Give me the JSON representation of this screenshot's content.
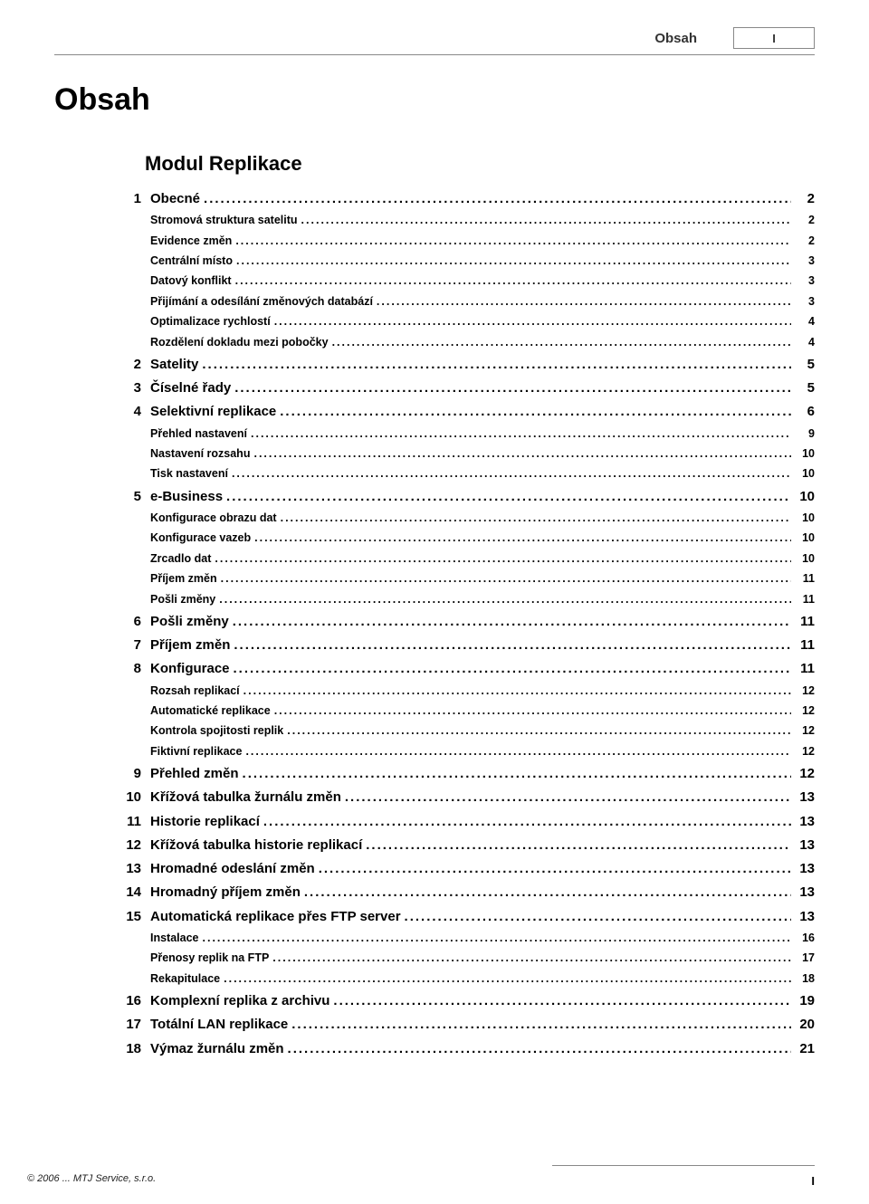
{
  "header": {
    "title": "Obsah",
    "page_number": "I"
  },
  "main_title": "Obsah",
  "chapter_title": "Modul Replikace",
  "toc": [
    {
      "level": 1,
      "num": "1",
      "label": "Obecné",
      "page": "2"
    },
    {
      "level": 2,
      "label": "Stromová struktura satelitu",
      "page": "2"
    },
    {
      "level": 2,
      "label": "Evidence změn",
      "page": "2"
    },
    {
      "level": 2,
      "label": "Centrální místo",
      "page": "3"
    },
    {
      "level": 2,
      "label": "Datový konflikt",
      "page": "3"
    },
    {
      "level": 2,
      "label": "Přijímání a odesílání změnových databází",
      "page": "3"
    },
    {
      "level": 2,
      "label": "Optimalizace rychlostí",
      "page": "4"
    },
    {
      "level": 2,
      "label": "Rozdělení dokladu mezi pobočky",
      "page": "4"
    },
    {
      "level": 1,
      "num": "2",
      "label": "Satelity",
      "page": "5"
    },
    {
      "level": 1,
      "num": "3",
      "label": "Číselné řady",
      "page": "5"
    },
    {
      "level": 1,
      "num": "4",
      "label": "Selektivní replikace",
      "page": "6"
    },
    {
      "level": 2,
      "label": "Přehled nastavení",
      "page": "9"
    },
    {
      "level": 2,
      "label": "Nastavení rozsahu",
      "page": "10"
    },
    {
      "level": 2,
      "label": "Tisk nastavení",
      "page": "10"
    },
    {
      "level": 1,
      "num": "5",
      "label": "e-Business",
      "page": "10"
    },
    {
      "level": 2,
      "label": "Konfigurace obrazu dat",
      "page": "10"
    },
    {
      "level": 2,
      "label": "Konfigurace vazeb",
      "page": "10"
    },
    {
      "level": 2,
      "label": "Zrcadlo dat",
      "page": "10"
    },
    {
      "level": 2,
      "label": "Příjem změn",
      "page": "11"
    },
    {
      "level": 2,
      "label": "Pošli změny",
      "page": "11"
    },
    {
      "level": 1,
      "num": "6",
      "label": "Pošli změny",
      "page": "11"
    },
    {
      "level": 1,
      "num": "7",
      "label": "Příjem změn",
      "page": "11"
    },
    {
      "level": 1,
      "num": "8",
      "label": "Konfigurace",
      "page": "11"
    },
    {
      "level": 2,
      "label": "Rozsah replikací",
      "page": "12"
    },
    {
      "level": 2,
      "label": "Automatické replikace",
      "page": "12"
    },
    {
      "level": 2,
      "label": "Kontrola spojitosti replik",
      "page": "12"
    },
    {
      "level": 2,
      "label": "Fiktivní replikace",
      "page": "12"
    },
    {
      "level": 1,
      "num": "9",
      "label": "Přehled změn",
      "page": "12"
    },
    {
      "level": 1,
      "num": "10",
      "label": "Křížová tabulka žurnálu změn",
      "page": "13"
    },
    {
      "level": 1,
      "num": "11",
      "label": "Historie replikací",
      "page": "13"
    },
    {
      "level": 1,
      "num": "12",
      "label": "Křížová tabulka historie replikací",
      "page": "13"
    },
    {
      "level": 1,
      "num": "13",
      "label": "Hromadné odeslání změn",
      "page": "13"
    },
    {
      "level": 1,
      "num": "14",
      "label": "Hromadný příjem změn",
      "page": "13"
    },
    {
      "level": 1,
      "num": "15",
      "label": "Automatická replikace přes FTP server",
      "page": "13"
    },
    {
      "level": 2,
      "label": "Instalace",
      "page": "16"
    },
    {
      "level": 2,
      "label": "Přenosy replik na FTP",
      "page": "17"
    },
    {
      "level": 2,
      "label": "Rekapitulace",
      "page": "18"
    },
    {
      "level": 1,
      "num": "16",
      "label": "Komplexní replika z archivu",
      "page": "19"
    },
    {
      "level": 1,
      "num": "17",
      "label": "Totální LAN replikace",
      "page": "20"
    },
    {
      "level": 1,
      "num": "18",
      "label": "Výmaz žurnálu změn",
      "page": "21"
    }
  ],
  "footer": {
    "copyright": "© 2006 ... MTJ Service, s.r.o.",
    "page_number": "I"
  }
}
